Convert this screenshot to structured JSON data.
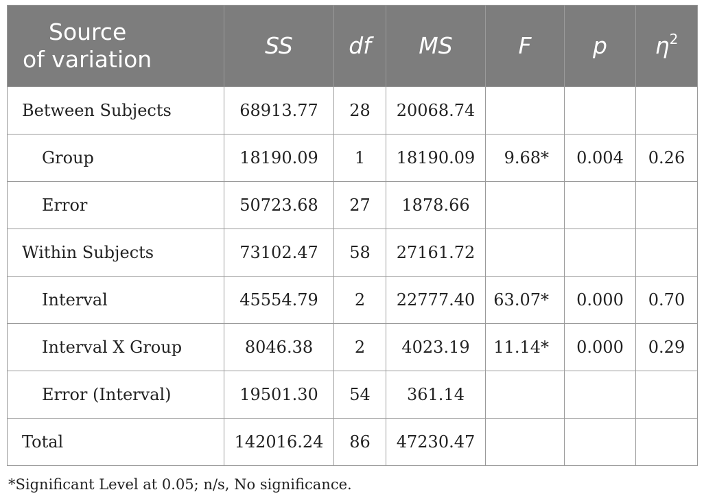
{
  "table": {
    "headers": {
      "source_line1": "Source",
      "source_line2": "of variation",
      "ss": "SS",
      "df": "df",
      "ms": "MS",
      "f": "F",
      "p": "p",
      "eta_base": "η",
      "eta_sup": "2"
    },
    "rows": [
      {
        "source": "Between Subjects",
        "ss": "68913.77",
        "df": "28",
        "ms": "20068.74",
        "f": "",
        "p": "",
        "eta": ""
      },
      {
        "source": "Group",
        "ss": "18190.09",
        "df": "1",
        "ms": "18190.09",
        "f": "9.68*",
        "p": "0.004",
        "eta": "0.26"
      },
      {
        "source": "Error",
        "ss": "50723.68",
        "df": "27",
        "ms": "1878.66",
        "f": "",
        "p": "",
        "eta": ""
      },
      {
        "source": "Within Subjects",
        "ss": "73102.47",
        "df": "58",
        "ms": "27161.72",
        "f": "",
        "p": "",
        "eta": ""
      },
      {
        "source": "Interval",
        "ss": "45554.79",
        "df": "2",
        "ms": "22777.40",
        "f": "63.07*",
        "p": "0.000",
        "eta": "0.70"
      },
      {
        "source": "Interval X Group",
        "ss": "8046.38",
        "df": "2",
        "ms": "4023.19",
        "f": "11.14*",
        "p": "0.000",
        "eta": "0.29"
      },
      {
        "source": "Error (Interval)",
        "ss": "19501.30",
        "df": "54",
        "ms": "361.14",
        "f": "",
        "p": "",
        "eta": ""
      },
      {
        "source": "Total",
        "ss": "142016.24",
        "df": "86",
        "ms": "47230.47",
        "f": "",
        "p": "",
        "eta": ""
      }
    ]
  },
  "footnote": "*Significant Level at 0.05; n/s, No significance.",
  "colors": {
    "header_bg": "#7d7d7d",
    "header_text": "#ffffff",
    "border": "#9a9a9a",
    "body_text": "#222222"
  }
}
